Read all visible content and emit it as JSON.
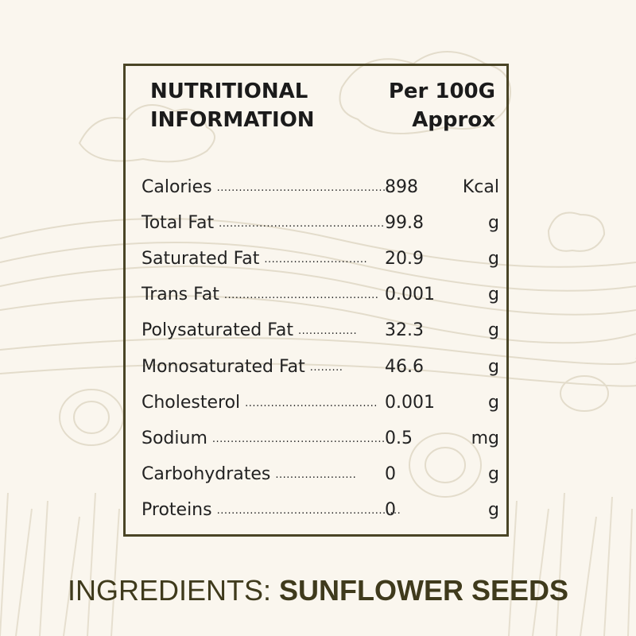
{
  "header": {
    "title_line1": "NUTRITIONAL",
    "title_line2": "INFORMATION",
    "per_line1": "Per 100G",
    "per_line2": "Approx"
  },
  "rows": [
    {
      "label": "Calories",
      "value": "898",
      "unit": "Kcal"
    },
    {
      "label": "Total Fat",
      "value": "99.8",
      "unit": "g"
    },
    {
      "label": "Saturated Fat",
      "value": "20.9",
      "unit": "g"
    },
    {
      "label": "Trans Fat",
      "value": "0.001",
      "unit": "g"
    },
    {
      "label": "Polysaturated Fat",
      "value": "32.3",
      "unit": "g"
    },
    {
      "label": "Monosaturated Fat",
      "value": "46.6",
      "unit": "g"
    },
    {
      "label": "Cholesterol",
      "value": "0.001",
      "unit": "g"
    },
    {
      "label": "Sodium",
      "value": "0.5",
      "unit": "mg"
    },
    {
      "label": "Carbohydrates",
      "value": "0",
      "unit": "g"
    },
    {
      "label": "Proteins",
      "value": "0",
      "unit": "g"
    }
  ],
  "ingredients": {
    "prefix": "INGREDIENTS: ",
    "value": "SUNFLOWER SEEDS"
  },
  "colors": {
    "background": "#faf6ee",
    "border": "#4a4526",
    "ingredients_text": "#3f3a1c"
  }
}
